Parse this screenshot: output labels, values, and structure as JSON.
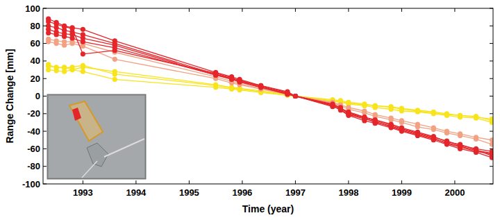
{
  "chart_data": {
    "type": "line",
    "x_label": "Time (year)",
    "y_label": "Range Change [mm]",
    "xlim": [
      1992.25,
      2000.72
    ],
    "xticks": [
      1993,
      1994,
      1995,
      1996,
      1997,
      1998,
      1999,
      2000
    ],
    "ylim": [
      -100,
      100
    ],
    "yticks": [
      -100,
      -80,
      -60,
      -40,
      -20,
      0,
      20,
      40,
      60,
      80,
      100
    ],
    "grid": false,
    "marker": "circle",
    "x": [
      1992.35,
      1992.5,
      1992.65,
      1992.8,
      1993.0,
      1993.6,
      1995.5,
      1995.8,
      1995.95,
      1996.35,
      1996.85,
      1997.0,
      1997.7,
      1997.85,
      1998.0,
      1998.3,
      1998.5,
      1998.8,
      1999.0,
      1999.3,
      1999.6,
      1999.85,
      2000.1,
      2000.4,
      2000.7
    ],
    "series": [
      {
        "color": "#f7e41c",
        "values": [
          34,
          33,
          32,
          33,
          35,
          25,
          12,
          9,
          8,
          5,
          1,
          0,
          -5,
          -6,
          -8,
          -10,
          -11,
          -13,
          -15,
          -17,
          -19,
          -21,
          -22,
          -24,
          -26
        ]
      },
      {
        "color": "#f7e41c",
        "values": [
          30,
          29,
          28,
          30,
          28,
          19,
          10,
          8,
          7,
          4,
          1,
          0,
          -4,
          -5,
          -7,
          -9,
          -11,
          -12,
          -14,
          -16,
          -18,
          -20,
          -22,
          -23,
          -28
        ]
      },
      {
        "color": "#f7e41c",
        "values": [
          36,
          32,
          33,
          30,
          33,
          28,
          13,
          10,
          9,
          6,
          2,
          0,
          -6,
          -7,
          -9,
          -11,
          -13,
          -15,
          -17,
          -18,
          -20,
          -22,
          -24,
          -25,
          -30
        ]
      },
      {
        "color": "#f2a183",
        "values": [
          65,
          63,
          62,
          62,
          60,
          50,
          22,
          17,
          14,
          9,
          2,
          0,
          -8,
          -11,
          -15,
          -19,
          -23,
          -27,
          -30,
          -35,
          -38,
          -42,
          -45,
          -49,
          -55
        ]
      },
      {
        "color": "#f2a183",
        "values": [
          62,
          60,
          58,
          60,
          57,
          42,
          20,
          15,
          13,
          8,
          2,
          0,
          -7,
          -10,
          -13,
          -17,
          -21,
          -25,
          -28,
          -32,
          -36,
          -40,
          -43,
          -47,
          -50
        ]
      },
      {
        "color": "#e4262b",
        "values": [
          88,
          84,
          80,
          78,
          76,
          63,
          27,
          22,
          19,
          12,
          4,
          0,
          -10,
          -14,
          -18,
          -24,
          -27,
          -32,
          -36,
          -41,
          -46,
          -52,
          -55,
          -61,
          -68
        ]
      },
      {
        "color": "#e4262b",
        "values": [
          80,
          78,
          75,
          73,
          70,
          60,
          25,
          20,
          18,
          11,
          3,
          0,
          -9,
          -13,
          -20,
          -25,
          -30,
          -34,
          -38,
          -43,
          -48,
          -54,
          -58,
          -63,
          -66
        ]
      },
      {
        "color": "#e4262b",
        "values": [
          72,
          70,
          68,
          66,
          62,
          55,
          24,
          19,
          16,
          10,
          2,
          0,
          -11,
          -16,
          -22,
          -28,
          -31,
          -36,
          -40,
          -45,
          -50,
          -55,
          -60,
          -64,
          -70
        ]
      },
      {
        "color": "#e4262b",
        "values": [
          85,
          82,
          79,
          77,
          48,
          52,
          26,
          21,
          17,
          12,
          5,
          0,
          -12,
          -15,
          -21,
          -26,
          -29,
          -35,
          -39,
          -44,
          -49,
          -53,
          -57,
          -62,
          -65
        ]
      },
      {
        "color": "#e4262b",
        "values": [
          76,
          73,
          71,
          70,
          66,
          58,
          24,
          20,
          17,
          10,
          3,
          0,
          -10,
          -14,
          -19,
          -24,
          -28,
          -33,
          -37,
          -42,
          -47,
          -51,
          -56,
          -60,
          -63
        ]
      }
    ]
  }
}
